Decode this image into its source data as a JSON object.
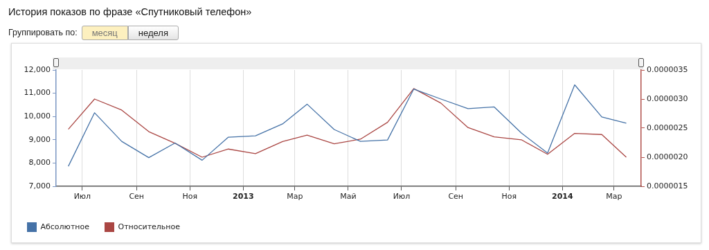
{
  "chart_data": {
    "type": "line",
    "title": "История показов по фразе «Спутниковый телефон»",
    "annotations": [
      "Группировать по:",
      "месяц",
      "неделя"
    ],
    "x": [
      "2012-06-15",
      "2012-07-15",
      "2012-08-15",
      "2012-09-15",
      "2012-10-15",
      "2012-11-15",
      "2012-12-15",
      "2013-01-15",
      "2013-02-15",
      "2013-03-15",
      "2013-04-15",
      "2013-05-15",
      "2013-06-15",
      "2013-07-15",
      "2013-08-15",
      "2013-09-15",
      "2013-10-15",
      "2013-11-15",
      "2013-12-15",
      "2014-01-15",
      "2014-02-15",
      "2014-03-15"
    ],
    "xlim": [
      "2012-06-01",
      "2014-04-01"
    ],
    "xticks": [
      {
        "value": "2012-07",
        "label": "Июл"
      },
      {
        "value": "2012-09",
        "label": "Сен"
      },
      {
        "value": "2012-11",
        "label": "Ноя"
      },
      {
        "value": "2013-01",
        "label": "2013"
      },
      {
        "value": "2013-03",
        "label": "Мар"
      },
      {
        "value": "2013-05",
        "label": "Май"
      },
      {
        "value": "2013-07",
        "label": "Июл"
      },
      {
        "value": "2013-09",
        "label": "Сен"
      },
      {
        "value": "2013-11",
        "label": "Ноя"
      },
      {
        "value": "2014-01",
        "label": "2014"
      },
      {
        "value": "2014-03",
        "label": "Мар"
      }
    ],
    "ylim": [
      7000,
      12000
    ],
    "yticks": [
      {
        "value": 7000,
        "label": "7,000"
      },
      {
        "value": 8000,
        "label": "8,000"
      },
      {
        "value": 9000,
        "label": "9,000"
      },
      {
        "value": 10000,
        "label": "10,000"
      },
      {
        "value": 11000,
        "label": "11,000"
      },
      {
        "value": 12000,
        "label": "12,000"
      }
    ],
    "y2lim": [
      1.5e-06,
      3.5e-06
    ],
    "y2ticks": [
      {
        "value": 1.5e-06,
        "label": "0.0000015"
      },
      {
        "value": 2e-06,
        "label": "0.0000020"
      },
      {
        "value": 2.5e-06,
        "label": "0.0000025"
      },
      {
        "value": 3e-06,
        "label": "0.0000030"
      },
      {
        "value": 3.5e-06,
        "label": "0.0000035"
      }
    ],
    "series": [
      {
        "name": "Абсолютное",
        "color": "#4572a7",
        "values": [
          7860,
          10160,
          8930,
          8230,
          8860,
          8120,
          9110,
          9170,
          9680,
          10530,
          9440,
          8930,
          8990,
          11180,
          10750,
          10340,
          10410,
          9290,
          8430,
          11360,
          9980,
          9710
        ]
      },
      {
        "name": "Относительное",
        "color": "#aa4643",
        "axis": "y2",
        "values": [
          2.48e-06,
          3e-06,
          2.81e-06,
          2.44e-06,
          2.24e-06,
          2e-06,
          2.14e-06,
          2.06e-06,
          2.27e-06,
          2.38e-06,
          2.23e-06,
          2.31e-06,
          2.6e-06,
          3.18e-06,
          2.93e-06,
          2.51e-06,
          2.35e-06,
          2.3e-06,
          2.05e-06,
          2.41e-06,
          2.39e-06,
          2e-06
        ]
      }
    ],
    "grid": "x",
    "legend": "bottom",
    "marker": "none",
    "line_style": "solid"
  }
}
